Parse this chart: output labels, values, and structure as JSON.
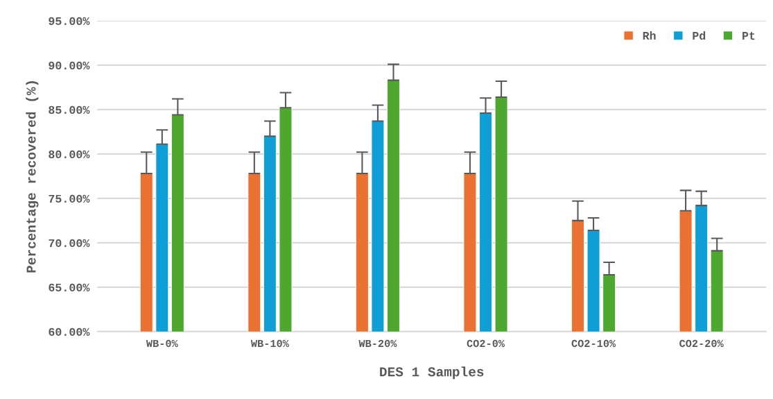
{
  "chart_data": {
    "type": "bar",
    "xlabel": "DES 1 Samples",
    "ylabel": "Percentage recovered (%)",
    "categories": [
      "WB-0%",
      "WB-10%",
      "WB-20%",
      "CO2-0%",
      "CO2-10%",
      "CO2-20%"
    ],
    "series": [
      {
        "name": "Rh",
        "color": "#e97132",
        "values": [
          77.8,
          77.8,
          77.8,
          77.8,
          72.5,
          73.6
        ],
        "errors": [
          [
            77.8,
            80.2
          ],
          [
            77.8,
            80.2
          ],
          [
            77.8,
            80.2
          ],
          [
            77.8,
            80.2
          ],
          [
            72.5,
            74.7
          ],
          [
            73.6,
            75.9
          ]
        ]
      },
      {
        "name": "Pd",
        "color": "#0f9ed5",
        "values": [
          81.1,
          82.0,
          83.7,
          84.6,
          71.4,
          74.2
        ],
        "errors": [
          [
            81.1,
            82.7
          ],
          [
            82.0,
            83.7
          ],
          [
            83.7,
            85.5
          ],
          [
            84.6,
            86.3
          ],
          [
            71.4,
            72.8
          ],
          [
            74.2,
            75.8
          ]
        ]
      },
      {
        "name": "Pt",
        "color": "#4ea72e",
        "values": [
          84.4,
          85.2,
          88.3,
          86.4,
          66.4,
          69.1
        ],
        "errors": [
          [
            84.4,
            86.2
          ],
          [
            85.2,
            86.9
          ],
          [
            88.3,
            90.1
          ],
          [
            86.4,
            88.2
          ],
          [
            66.4,
            67.8
          ],
          [
            69.1,
            70.5
          ]
        ]
      }
    ],
    "ylim": [
      60,
      95
    ],
    "yticks": [
      {
        "value": 60,
        "label": "60.00%"
      },
      {
        "value": 65,
        "label": "65.00%"
      },
      {
        "value": 70,
        "label": "70.00%"
      },
      {
        "value": 75,
        "label": "75.00%"
      },
      {
        "value": 80,
        "label": "80.00%"
      },
      {
        "value": 85,
        "label": "85.00%"
      },
      {
        "value": 90,
        "label": "90.00%"
      },
      {
        "value": 95,
        "label": "95.00%"
      }
    ],
    "grid": "y",
    "legend": "top right"
  }
}
